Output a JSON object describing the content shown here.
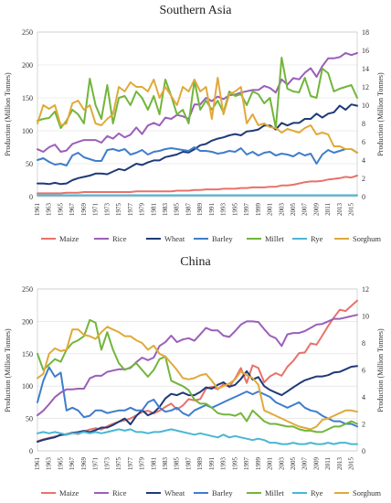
{
  "colors": {
    "Maize": "#e8726a",
    "Rice": "#9b5fb8",
    "Wheat": "#1f3a78",
    "Barley": "#3f7dcc",
    "Millet": "#72b53b",
    "Rye": "#4bb6d4",
    "Sorghum": "#e0a93a"
  },
  "chart_data": [
    {
      "type": "line",
      "title": "Southern Asia",
      "ylabel": "Production (Million Tonnes)",
      "y2label": "Production (Million Tonnes)",
      "ylim": [
        0,
        250
      ],
      "y2lim": [
        0,
        18
      ],
      "yticks": [
        0,
        50,
        100,
        150,
        200,
        250
      ],
      "y2ticks": [
        0,
        2,
        4,
        6,
        8,
        10,
        12,
        14,
        16,
        18
      ],
      "x": [
        1961,
        1962,
        1963,
        1964,
        1965,
        1966,
        1967,
        1968,
        1969,
        1970,
        1971,
        1972,
        1973,
        1974,
        1975,
        1976,
        1977,
        1978,
        1979,
        1980,
        1981,
        1982,
        1983,
        1984,
        1985,
        1986,
        1987,
        1988,
        1989,
        1990,
        1991,
        1992,
        1993,
        1994,
        1995,
        1996,
        1997,
        1998,
        1999,
        2000,
        2001,
        2002,
        2003,
        2004,
        2005,
        2006,
        2007,
        2008,
        2009,
        2010,
        2011,
        2012,
        2013,
        2014,
        2015,
        2016
      ],
      "xticks": [
        1961,
        1963,
        1965,
        1967,
        1969,
        1971,
        1973,
        1975,
        1977,
        1979,
        1981,
        1983,
        1985,
        1987,
        1989,
        1991,
        1993,
        1995,
        1997,
        1999,
        2001,
        2003,
        2005,
        2007,
        2009,
        2011,
        2013,
        2015
      ],
      "grid": true,
      "legend": "bottom",
      "series": [
        {
          "name": "Maize",
          "axis": "left",
          "values": [
            5,
            5,
            5,
            5,
            5,
            6,
            6,
            6,
            7,
            7,
            7,
            7,
            7,
            7,
            7,
            7,
            7,
            8,
            8,
            8,
            8,
            8,
            8,
            8,
            9,
            9,
            9,
            10,
            10,
            11,
            11,
            11,
            12,
            12,
            12,
            13,
            13,
            14,
            14,
            14,
            15,
            15,
            17,
            17,
            18,
            20,
            22,
            23,
            23,
            24,
            26,
            27,
            28,
            30,
            29,
            32
          ]
        },
        {
          "name": "Rice",
          "axis": "left",
          "values": [
            72,
            68,
            75,
            79,
            68,
            70,
            80,
            83,
            86,
            86,
            86,
            82,
            92,
            88,
            96,
            90,
            94,
            105,
            95,
            108,
            112,
            108,
            120,
            118,
            124,
            122,
            118,
            140,
            140,
            150,
            145,
            152,
            148,
            154,
            155,
            158,
            160,
            162,
            162,
            168,
            165,
            158,
            178,
            170,
            180,
            178,
            188,
            195,
            182,
            198,
            210,
            210,
            212,
            218,
            215,
            218
          ]
        },
        {
          "name": "Wheat",
          "axis": "left",
          "values": [
            20,
            20,
            19,
            21,
            19,
            20,
            25,
            28,
            30,
            32,
            35,
            35,
            34,
            38,
            42,
            40,
            45,
            50,
            48,
            52,
            55,
            55,
            60,
            62,
            64,
            68,
            67,
            72,
            78,
            80,
            85,
            88,
            90,
            93,
            95,
            93,
            99,
            100,
            102,
            108,
            108,
            102,
            112,
            108,
            112,
            112,
            118,
            118,
            126,
            120,
            126,
            128,
            138,
            132,
            140,
            138
          ]
        },
        {
          "name": "Barley",
          "axis": "right",
          "values": [
            4.0,
            4.2,
            3.8,
            3.5,
            3.6,
            3.4,
            4.5,
            4.8,
            4.3,
            4.1,
            3.9,
            3.9,
            5.1,
            5.2,
            5.0,
            5.2,
            4.6,
            4.8,
            5.1,
            4.6,
            4.9,
            5.0,
            5.2,
            5.3,
            5.2,
            5.1,
            5.0,
            5.4,
            5.0,
            5.0,
            4.9,
            4.7,
            4.8,
            5.0,
            4.9,
            5.3,
            4.6,
            4.9,
            4.5,
            4.8,
            4.9,
            4.5,
            4.7,
            4.6,
            4.4,
            4.8,
            4.5,
            4.7,
            3.6,
            4.6,
            5.1,
            4.8,
            5.0,
            5.2,
            5.2,
            4.8
          ]
        },
        {
          "name": "Millet",
          "axis": "right",
          "values": [
            8.3,
            8.5,
            8.6,
            9.3,
            7.5,
            8.3,
            9.5,
            9.0,
            8.0,
            12.9,
            10.0,
            8.5,
            12.2,
            8.0,
            10.8,
            11.0,
            10.0,
            11.5,
            10.8,
            9.5,
            11.0,
            9.0,
            12.8,
            11.0,
            9.0,
            9.5,
            8.0,
            12.7,
            9.5,
            10.5,
            9.5,
            10.5,
            9.2,
            11.5,
            11.0,
            11.2,
            10.0,
            11.5,
            11.2,
            10.2,
            10.8,
            7.5,
            15.2,
            11.8,
            11.5,
            11.4,
            13.0,
            11.0,
            10.8,
            14.0,
            13.5,
            11.5,
            11.8,
            12.0,
            12.2,
            10.8
          ]
        },
        {
          "name": "Rye",
          "axis": "right",
          "values": [
            0.15,
            0.15,
            0.15,
            0.15,
            0.15,
            0.15,
            0.15,
            0.15,
            0.15,
            0.15,
            0.15,
            0.15,
            0.15,
            0.15,
            0.15,
            0.15,
            0.15,
            0.15,
            0.15,
            0.15,
            0.15,
            0.15,
            0.15,
            0.15,
            0.15,
            0.15,
            0.15,
            0.15,
            0.15,
            0.15,
            0.15,
            0.15,
            0.15,
            0.15,
            0.15,
            0.15,
            0.15,
            0.15,
            0.15,
            0.15,
            0.15,
            0.15,
            0.15,
            0.15,
            0.15,
            0.15,
            0.15,
            0.15,
            0.15,
            0.15,
            0.15,
            0.15,
            0.15,
            0.15,
            0.15,
            0.15
          ]
        },
        {
          "name": "Sorghum",
          "axis": "right",
          "values": [
            8.0,
            10.0,
            9.6,
            10.0,
            7.8,
            8.0,
            10.2,
            10.5,
            9.5,
            10.0,
            8.0,
            7.8,
            8.5,
            9.0,
            12.0,
            11.5,
            12.5,
            12.0,
            12.0,
            11.5,
            12.8,
            10.8,
            12.0,
            11.0,
            10.0,
            12.0,
            11.5,
            12.8,
            11.5,
            12.0,
            8.5,
            13.0,
            9.0,
            11.2,
            11.5,
            12.0,
            8.0,
            9.0,
            7.8,
            8.0,
            7.6,
            7.5,
            7.0,
            7.4,
            7.2,
            7.0,
            7.5,
            7.8,
            6.8,
            7.0,
            6.8,
            5.5,
            5.5,
            5.2,
            5.2,
            4.8
          ]
        }
      ]
    },
    {
      "type": "line",
      "title": "China",
      "ylabel": "Production (Million Tonnes)",
      "y2label": "Production (Million Tonnes)",
      "ylim": [
        0,
        250
      ],
      "y2lim": [
        0,
        12
      ],
      "yticks": [
        0,
        50,
        100,
        150,
        200,
        250
      ],
      "y2ticks": [
        0,
        2,
        4,
        6,
        8,
        10,
        12
      ],
      "x": [
        1961,
        1962,
        1963,
        1964,
        1965,
        1966,
        1967,
        1968,
        1969,
        1970,
        1971,
        1972,
        1973,
        1974,
        1975,
        1976,
        1977,
        1978,
        1979,
        1980,
        1981,
        1982,
        1983,
        1984,
        1985,
        1986,
        1987,
        1988,
        1989,
        1990,
        1991,
        1992,
        1993,
        1994,
        1995,
        1996,
        1997,
        1998,
        1999,
        2000,
        2001,
        2002,
        2003,
        2004,
        2005,
        2006,
        2007,
        2008,
        2009,
        2010,
        2011,
        2012,
        2013,
        2014,
        2015,
        2016
      ],
      "xticks": [
        1961,
        1963,
        1965,
        1967,
        1969,
        1971,
        1973,
        1975,
        1977,
        1979,
        1981,
        1983,
        1985,
        1987,
        1989,
        1991,
        1993,
        1995,
        1997,
        1999,
        2001,
        2003,
        2005,
        2007,
        2009,
        2011,
        2013,
        2015
      ],
      "grid": true,
      "legend": "bottom",
      "series": [
        {
          "name": "Maize",
          "axis": "left",
          "values": [
            15,
            18,
            20,
            22,
            24,
            26,
            28,
            26,
            30,
            33,
            35,
            33,
            38,
            42,
            45,
            47,
            50,
            55,
            60,
            62,
            58,
            62,
            68,
            73,
            64,
            70,
            80,
            78,
            80,
            96,
            99,
            95,
            103,
            99,
            112,
            128,
            105,
            132,
            128,
            106,
            115,
            120,
            116,
            130,
            139,
            151,
            152,
            166,
            164,
            178,
            193,
            206,
            218,
            216,
            224,
            232
          ]
        },
        {
          "name": "Rice",
          "axis": "left",
          "values": [
            55,
            62,
            72,
            83,
            90,
            95,
            95,
            96,
            96,
            112,
            116,
            116,
            122,
            124,
            126,
            126,
            128,
            137,
            144,
            140,
            144,
            162,
            168,
            178,
            168,
            172,
            174,
            170,
            180,
            190,
            186,
            186,
            178,
            176,
            185,
            195,
            200,
            200,
            199,
            188,
            178,
            174,
            162,
            180,
            182,
            182,
            185,
            190,
            195,
            196,
            200,
            204,
            204,
            206,
            208,
            210
          ]
        },
        {
          "name": "Wheat",
          "axis": "left",
          "values": [
            14,
            17,
            19,
            21,
            25,
            25,
            28,
            29,
            31,
            29,
            32,
            36,
            36,
            40,
            45,
            50,
            41,
            54,
            63,
            55,
            59,
            68,
            81,
            88,
            86,
            90,
            86,
            86,
            91,
            98,
            96,
            102,
            106,
            99,
            102,
            111,
            123,
            110,
            114,
            100,
            94,
            90,
            86,
            92,
            98,
            104,
            109,
            112,
            115,
            115,
            117,
            121,
            122,
            126,
            130,
            131
          ]
        },
        {
          "name": "Barley",
          "axis": "right",
          "values": [
            3.6,
            5.2,
            6.2,
            5.5,
            5.8,
            3.0,
            3.2,
            3.0,
            2.5,
            2.6,
            3.0,
            3.0,
            2.8,
            2.9,
            3.0,
            3.0,
            3.2,
            3.0,
            3.0,
            3.6,
            3.8,
            3.2,
            2.9,
            3.0,
            3.2,
            2.8,
            2.6,
            3.0,
            3.2,
            3.4,
            3.2,
            3.4,
            3.6,
            3.8,
            4.0,
            4.2,
            4.4,
            4.2,
            4.4,
            4.2,
            4.0,
            3.6,
            3.4,
            3.2,
            3.4,
            3.6,
            3.2,
            3.0,
            2.9,
            2.6,
            2.4,
            2.2,
            2.2,
            2.0,
            2.0,
            1.8
          ]
        },
        {
          "name": "Millet",
          "axis": "right",
          "values": [
            7.2,
            6.0,
            6.4,
            6.8,
            6.6,
            7.5,
            8.0,
            8.2,
            8.5,
            9.7,
            9.5,
            7.5,
            8.8,
            7.5,
            6.5,
            6.0,
            6.2,
            6.5,
            6.0,
            5.5,
            6.0,
            6.8,
            7.0,
            5.2,
            5.0,
            4.8,
            4.5,
            3.8,
            3.5,
            3.5,
            3.2,
            2.8,
            2.7,
            2.7,
            2.6,
            2.8,
            2.2,
            3.0,
            2.6,
            2.2,
            2.0,
            2.0,
            1.9,
            1.8,
            1.8,
            1.6,
            1.5,
            1.5,
            1.4,
            1.4,
            1.6,
            1.8,
            1.8,
            2.0,
            2.2,
            2.0
          ]
        },
        {
          "name": "Rye",
          "axis": "right",
          "values": [
            1.3,
            1.4,
            1.3,
            1.4,
            1.3,
            1.2,
            1.3,
            1.3,
            1.4,
            1.3,
            1.4,
            1.3,
            1.4,
            1.5,
            1.6,
            1.5,
            1.6,
            1.4,
            1.4,
            1.3,
            1.4,
            1.4,
            1.5,
            1.6,
            1.5,
            1.4,
            1.3,
            1.2,
            1.3,
            1.2,
            1.1,
            1.0,
            1.2,
            1.0,
            1.1,
            1.0,
            0.9,
            0.8,
            0.9,
            0.8,
            0.6,
            0.6,
            0.5,
            0.5,
            0.6,
            0.5,
            0.5,
            0.6,
            0.5,
            0.5,
            0.6,
            0.5,
            0.6,
            0.6,
            0.5,
            0.5
          ]
        },
        {
          "name": "Sorghum",
          "axis": "right",
          "values": [
            5.4,
            5.7,
            7.2,
            7.6,
            7.4,
            7.5,
            9.0,
            9.0,
            8.6,
            8.5,
            8.3,
            8.8,
            9.2,
            9.0,
            8.8,
            8.5,
            8.5,
            8.2,
            8.0,
            7.5,
            7.8,
            7.2,
            7.0,
            6.5,
            6.0,
            5.4,
            5.3,
            5.4,
            5.6,
            5.7,
            5.2,
            4.6,
            4.8,
            5.0,
            5.3,
            5.9,
            5.6,
            5.4,
            4.9,
            3.0,
            2.8,
            2.6,
            2.4,
            2.2,
            2.0,
            1.8,
            1.7,
            1.6,
            1.8,
            2.3,
            2.4,
            2.6,
            2.8,
            3.0,
            3.0,
            2.9
          ]
        }
      ]
    }
  ]
}
